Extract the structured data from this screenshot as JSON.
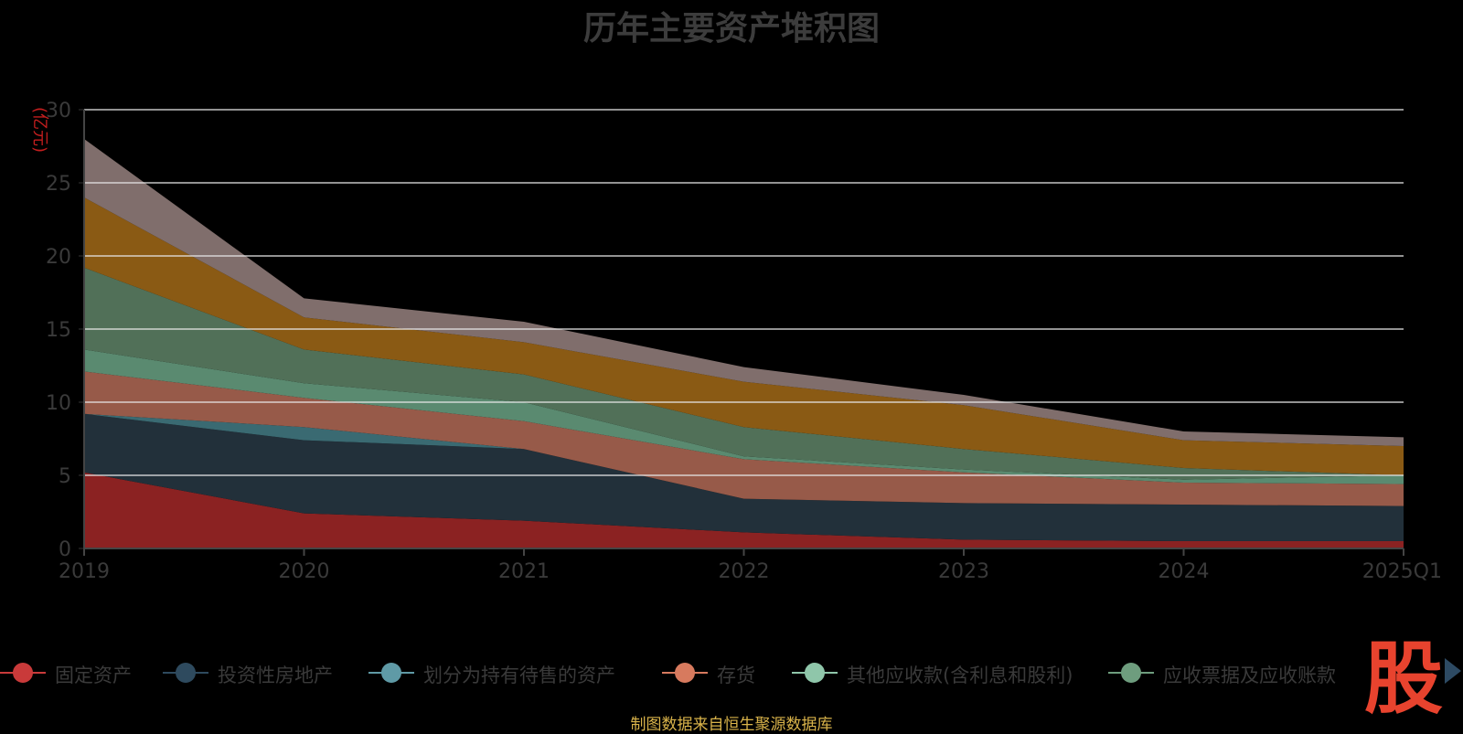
{
  "chart_data": {
    "type": "area",
    "stacked": true,
    "title": "历年主要资产堆积图",
    "ylabel": "(亿元)",
    "xlabel": "",
    "categories": [
      "2019",
      "2020",
      "2021",
      "2022",
      "2023",
      "2024",
      "2025Q1"
    ],
    "ylim": [
      0,
      30
    ],
    "yticks": [
      0,
      5,
      10,
      15,
      20,
      25,
      30
    ],
    "grid": true,
    "legend_position": "bottom",
    "series": [
      {
        "name": "固定资产",
        "color": "#8b2222",
        "values": [
          5.2,
          2.4,
          1.9,
          1.1,
          0.6,
          0.5,
          0.5
        ]
      },
      {
        "name": "投资性房地产",
        "color": "#22303a",
        "values": [
          4.0,
          5.0,
          4.9,
          2.3,
          2.5,
          2.5,
          2.4
        ]
      },
      {
        "name": "划分为持有待售的资产",
        "color": "#3a6a72",
        "values": [
          0.0,
          0.9,
          0.0,
          0.0,
          0.0,
          0.0,
          0.0
        ]
      },
      {
        "name": "存货",
        "color": "#975a49",
        "values": [
          2.9,
          2.0,
          1.9,
          2.7,
          2.1,
          1.5,
          1.5
        ]
      },
      {
        "name": "其他应收款(含利息和股利)",
        "color": "#5a8a70",
        "values": [
          1.5,
          1.0,
          1.3,
          0.2,
          0.2,
          0.2,
          0.6
        ]
      },
      {
        "name": "应收票据及应收账款",
        "color": "#517058",
        "values": [
          5.6,
          2.3,
          1.9,
          2.0,
          1.4,
          0.8,
          0.0
        ]
      },
      {
        "name": "",
        "color": "#8a5a14",
        "values": [
          4.8,
          2.2,
          2.2,
          3.1,
          3.0,
          1.9,
          2.0
        ]
      },
      {
        "name": "",
        "color": "#806e6c",
        "values": [
          4.0,
          1.3,
          1.4,
          1.0,
          0.7,
          0.6,
          0.6
        ]
      }
    ]
  },
  "legend_items": [
    {
      "label": "固定资产",
      "color": "#c93a3a"
    },
    {
      "label": "投资性房地产",
      "color": "#2e4a5e"
    },
    {
      "label": "划分为持有待售的资产",
      "color": "#5f9aa6"
    },
    {
      "label": "存货",
      "color": "#d77a5e"
    },
    {
      "label": "其他应收款(含利息和股利)",
      "color": "#8fc6aa"
    },
    {
      "label": "应收票据及应收账款",
      "color": "#6e9d7e"
    }
  ],
  "watermark_text": "股",
  "source_note": "制图数据来自恒生聚源数据库"
}
